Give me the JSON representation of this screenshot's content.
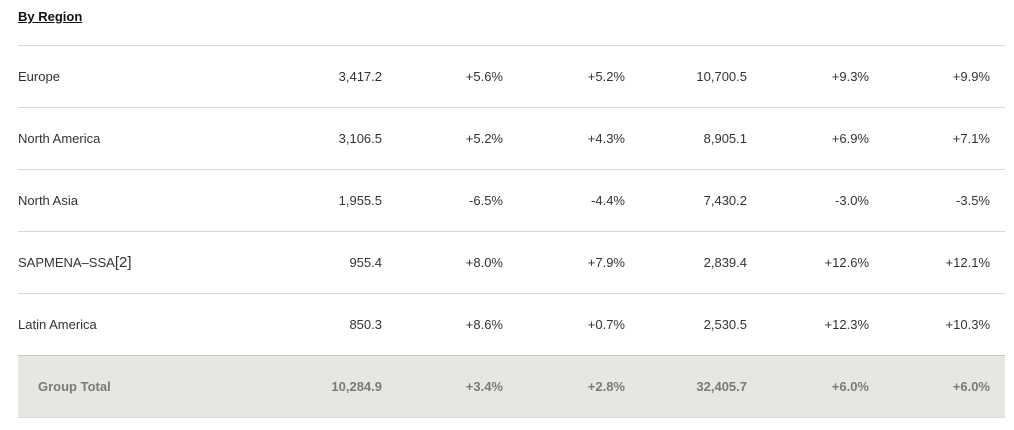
{
  "section": {
    "title": "By Region"
  },
  "rows": [
    {
      "name": "Europe",
      "note": "",
      "values": [
        "3,417.2",
        "+5.6%",
        "+5.2%",
        "10,700.5",
        "+9.3%",
        "+9.9%"
      ]
    },
    {
      "name": "North America",
      "note": "",
      "values": [
        "3,106.5",
        "+5.2%",
        "+4.3%",
        "8,905.1",
        "+6.9%",
        "+7.1%"
      ]
    },
    {
      "name": "North Asia",
      "note": "",
      "values": [
        "1,955.5",
        "-6.5%",
        "-4.4%",
        "7,430.2",
        "-3.0%",
        "-3.5%"
      ]
    },
    {
      "name": "SAPMENA–SSA",
      "note": "[2]",
      "values": [
        "955.4",
        "+8.0%",
        "+7.9%",
        "2,839.4",
        "+12.6%",
        "+12.1%"
      ]
    },
    {
      "name": "Latin America",
      "note": "",
      "values": [
        "850.3",
        "+8.6%",
        "+0.7%",
        "2,530.5",
        "+12.3%",
        "+10.3%"
      ]
    }
  ],
  "total": {
    "name": "Group Total",
    "values": [
      "10,284.9",
      "+3.4%",
      "+2.8%",
      "32,405.7",
      "+6.0%",
      "+6.0%"
    ]
  }
}
